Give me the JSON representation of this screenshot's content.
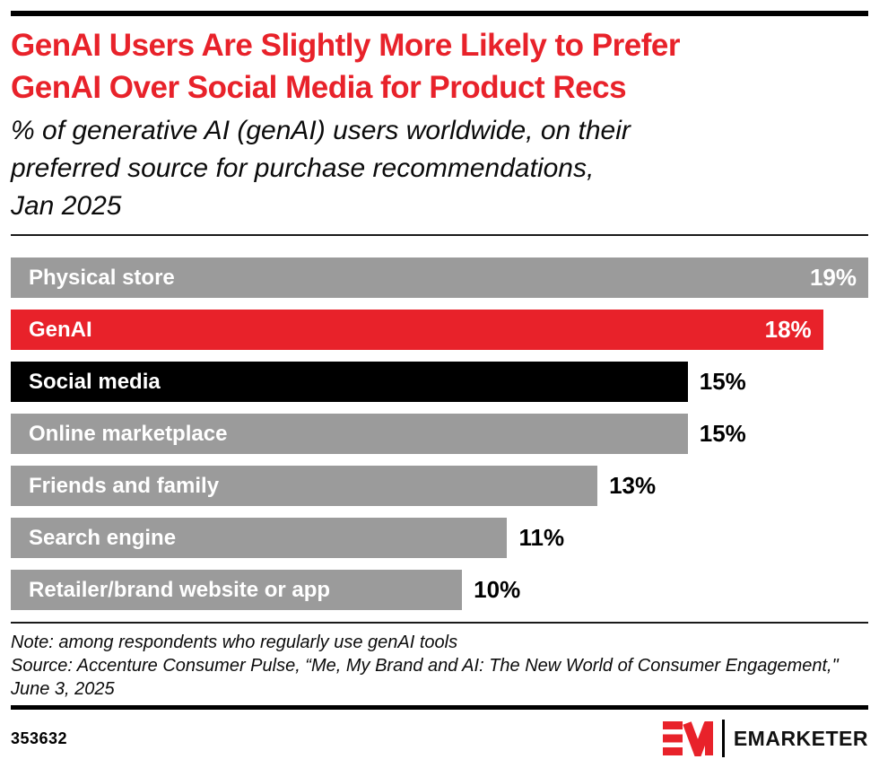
{
  "header": {
    "title_lines": [
      "GenAI Users Are Slightly More Likely to Prefer",
      "GenAI Over Social Media for Product Recs"
    ],
    "subtitle_lines": [
      "% of generative AI (genAI) users worldwide, on their",
      "preferred source for purchase recommendations,",
      "Jan 2025"
    ]
  },
  "chart_data": {
    "type": "bar",
    "orientation": "horizontal",
    "title": "GenAI Users Are Slightly More Likely to Prefer GenAI Over Social Media for Product Recs",
    "subtitle": "% of generative AI (genAI) users worldwide, on their preferred source for purchase recommendations, Jan 2025",
    "categories": [
      "Physical store",
      "GenAI",
      "Social media",
      "Online marketplace",
      "Friends and family",
      "Search engine",
      "Retailer/brand website or app"
    ],
    "values": [
      19,
      18,
      15,
      15,
      13,
      11,
      10
    ],
    "value_labels": [
      "19%",
      "18%",
      "15%",
      "15%",
      "13%",
      "11%",
      "10%"
    ],
    "unit": "%",
    "xlim": [
      0,
      19
    ],
    "bar_colors": [
      "#9b9b9b",
      "#e8222a",
      "#000000",
      "#9b9b9b",
      "#9b9b9b",
      "#9b9b9b",
      "#9b9b9b"
    ],
    "value_label_inside": [
      true,
      true,
      false,
      false,
      false,
      false,
      false
    ],
    "grid": false,
    "legend": "none",
    "xlabel": "",
    "ylabel": ""
  },
  "footer": {
    "note": "Note: among respondents who regularly use genAI tools",
    "source": "Source: Accenture Consumer Pulse, “Me, My Brand and AI: The New World of Consumer Engagement,\" June 3, 2025",
    "chart_id": "353632",
    "brand_name": "EMARKETER",
    "logo_icon": "emarketer-em-monogram"
  },
  "colors": {
    "accent_red": "#e8222a",
    "bar_gray": "#9b9b9b",
    "bar_black": "#000000",
    "background": "#ffffff"
  }
}
